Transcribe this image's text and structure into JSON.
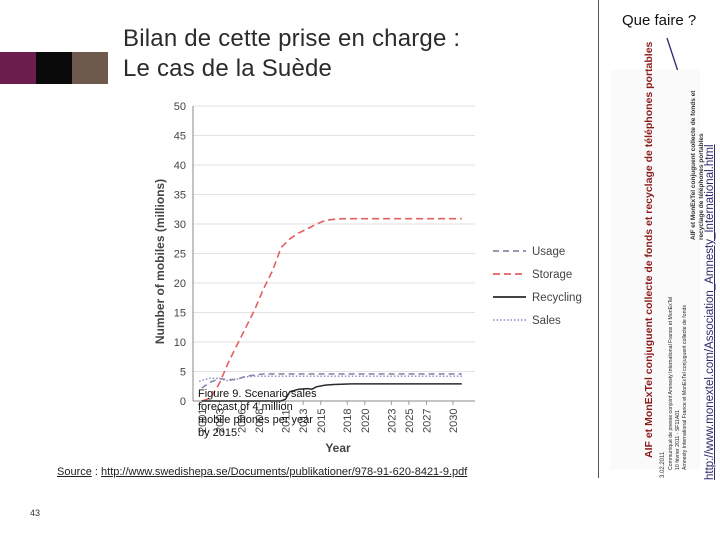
{
  "slide": {
    "title_line1": "Bilan de cette prise en charge :",
    "title_line2": "Le cas de la Suède",
    "side_title": "Que faire ?",
    "side_url": "http://www.monextel.com/Association_Amnesty_International.html",
    "source_label": "Source",
    "source_sep": " : ",
    "source_url": "http://www.swedishepa.se/Documents/publikationer/978-91-620-8421-9.pdf",
    "page_number": "43",
    "colors": {
      "purple": "#6b1d4e",
      "black": "#0a0a0a",
      "brown": "#6d5a4d",
      "accent_red": "#8b1a1a"
    }
  },
  "doc": {
    "heading": "AIF et MonExTel conjuguent collecte de fonds et recyclage de téléphones portables",
    "date": "3.02.2011",
    "line1": "Communiqué de presse conjoint Amnesty International France et MonExTel",
    "line2": "10 février 2011 - SF11A01",
    "line3": "Amnesty International France et MonExTel conjuguent collecte de fonds",
    "right1": "AIF et MonExTel conjuguent collecte de fonds et",
    "right2": "recyclage de téléphones portables"
  },
  "chart_data": {
    "type": "line",
    "title": "",
    "xlabel": "Year",
    "ylabel": "Number of mobiles (millions)",
    "ylim": [
      0,
      50
    ],
    "yticks": [
      "0",
      "5",
      "10",
      "15",
      "20",
      "25",
      "30",
      "35",
      "40",
      "45",
      "50"
    ],
    "xlim": [
      2000,
      2032
    ],
    "xtick_labels": [
      "2001",
      "2003",
      "2006",
      "2008",
      "2011",
      "2013",
      "2015",
      "2018",
      "2020",
      "2023",
      "2025",
      "2027",
      "2030"
    ],
    "xtick_values": [
      2001,
      2003,
      2005.5,
      2007.5,
      2010.5,
      2012.5,
      2014.5,
      2017.5,
      2019.5,
      2022.5,
      2024.5,
      2026.5,
      2029.5
    ],
    "caption": [
      "Figure 9. Scenario sales",
      "forecast of 4 million",
      "mobile phones per year",
      "by 2015."
    ],
    "series": [
      {
        "name": "Usage",
        "color": "#8a8aa8",
        "dash": "6,4",
        "width": 1.6,
        "x": [
          2001,
          2002,
          2003,
          2004,
          2005,
          2006,
          2007,
          2008,
          2009,
          2030.5
        ],
        "y": [
          2.2,
          3.2,
          3.8,
          3.6,
          3.7,
          4.2,
          4.4,
          4.6,
          4.6,
          4.6
        ]
      },
      {
        "name": "Storage",
        "color": "#e36060",
        "dash": "7,4",
        "width": 1.6,
        "x": [
          2001,
          2002,
          2003,
          2004,
          2005,
          2006,
          2007,
          2008,
          2009,
          2010,
          2011,
          2012,
          2013,
          2014,
          2015,
          2016,
          2017,
          2018,
          2019,
          2030.5
        ],
        "y": [
          0,
          0.5,
          3,
          6.5,
          9.5,
          12.5,
          15.5,
          19,
          22,
          26,
          27.5,
          28.5,
          29.2,
          30,
          30.6,
          30.8,
          30.9,
          30.9,
          30.9,
          30.9
        ]
      },
      {
        "name": "Recycling",
        "color": "#2a2a2a",
        "dash": "",
        "width": 1.5,
        "x": [
          2001,
          2010,
          2010.5,
          2011,
          2012,
          2013,
          2013.5,
          2014,
          2015,
          2016,
          2018,
          2030.5
        ],
        "y": [
          0,
          0,
          0.3,
          1.6,
          2,
          2.1,
          2,
          2.4,
          2.7,
          2.8,
          2.9,
          2.9
        ]
      },
      {
        "name": "Sales",
        "color": "#8888bb",
        "dash": "1.5,2",
        "width": 1.4,
        "x": [
          2000.7,
          2001,
          2002,
          2003,
          2004,
          2005,
          2006,
          2007,
          2008,
          2030.5
        ],
        "y": [
          3.3,
          3.5,
          3.9,
          3.8,
          3.4,
          3.7,
          4.1,
          4.2,
          4.2,
          4.2
        ]
      }
    ]
  }
}
